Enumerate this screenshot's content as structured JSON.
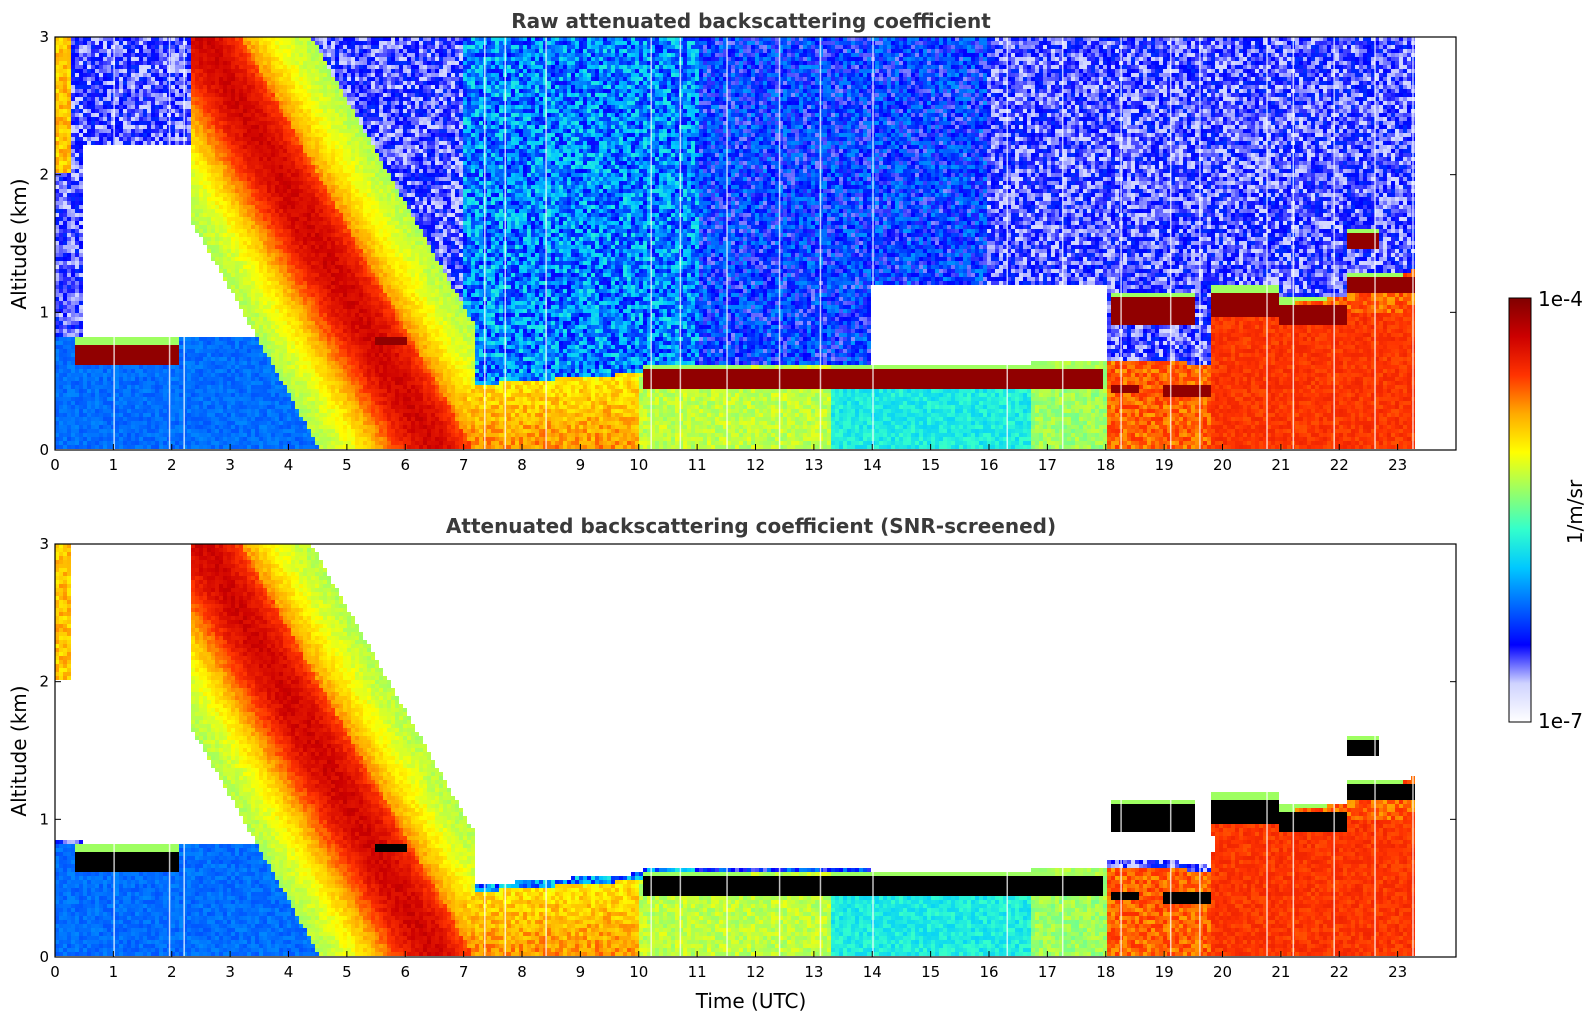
{
  "chart_data": [
    {
      "type": "heatmap",
      "title": "Raw attenuated backscattering coefficient",
      "xlabel": "",
      "ylabel": "Altitude (km)",
      "xlim": [
        0,
        24
      ],
      "ylim": [
        0,
        3
      ],
      "xticks": [
        "0",
        "1",
        "2",
        "3",
        "4",
        "5",
        "6",
        "7",
        "8",
        "9",
        "10",
        "11",
        "12",
        "13",
        "14",
        "15",
        "16",
        "17",
        "18",
        "19",
        "20",
        "21",
        "22",
        "23"
      ],
      "yticks": [
        "0",
        "1",
        "2",
        "3"
      ],
      "data_end_time": 23.3,
      "features": [
        {
          "time_start": 0.3,
          "time_end": 2.1,
          "altitude_km": 0.7
        },
        {
          "time_start": 10.1,
          "time_end": 17.9,
          "altitude_km": 0.5
        },
        {
          "time_start": 18.0,
          "time_end": 19.8,
          "altitude_km": 0.95
        },
        {
          "time_start": 19.8,
          "time_end": 23.3,
          "altitude_km": 1.1
        }
      ]
    },
    {
      "type": "heatmap",
      "title": "Attenuated backscattering coefficient (SNR-screened)",
      "xlabel": "Time (UTC)",
      "ylabel": "Altitude (km)",
      "xlim": [
        0,
        24
      ],
      "ylim": [
        0,
        3
      ],
      "xticks": [
        "0",
        "1",
        "2",
        "3",
        "4",
        "5",
        "6",
        "7",
        "8",
        "9",
        "10",
        "11",
        "12",
        "13",
        "14",
        "15",
        "16",
        "17",
        "18",
        "19",
        "20",
        "21",
        "22",
        "23"
      ],
      "yticks": [
        "0",
        "1",
        "2",
        "3"
      ],
      "data_end_time": 23.3
    }
  ],
  "colorbar": {
    "label": "1/m/sr",
    "max_label": "1e-4",
    "min_label": "1e-7",
    "colormap": [
      "#ffffff",
      "#cfd3ff",
      "#0000ff",
      "#0066ff",
      "#00c8ff",
      "#33ffcc",
      "#99ff66",
      "#ffff00",
      "#ffaa00",
      "#ff3300",
      "#cc0000",
      "#800000"
    ]
  }
}
